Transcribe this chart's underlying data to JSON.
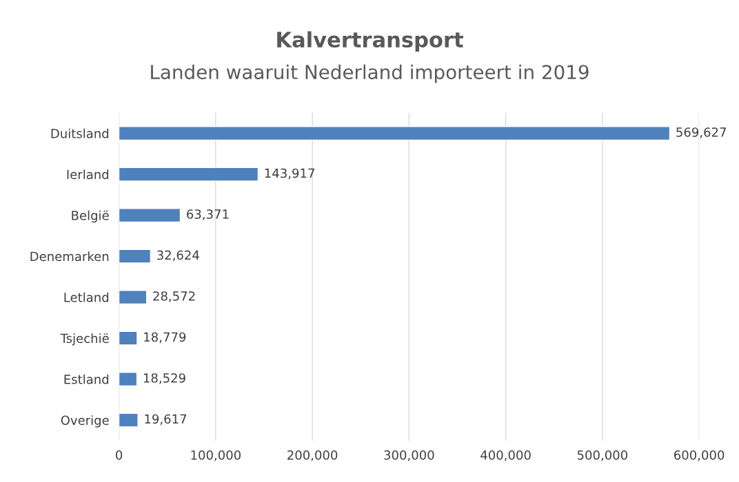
{
  "chart_data": {
    "type": "bar",
    "orientation": "horizontal",
    "title": "Kalvertransport",
    "subtitle": "Landen waaruit Nederland importeert in 2019",
    "categories": [
      "Duitsland",
      "Ierland",
      "België",
      "Denemarken",
      "Letland",
      "Tsjechië",
      "Estland",
      "Overige"
    ],
    "values": [
      569627,
      143917,
      63371,
      32624,
      28572,
      18779,
      18529,
      19617
    ],
    "color": "#4f81bd",
    "xlim": [
      0,
      600000
    ],
    "xticks": [
      0,
      {
        "value": 100000,
        "label": "100,000"
      },
      {
        "value": 200000,
        "label": "200,000"
      },
      {
        "value": 300000,
        "label": "300,000"
      },
      {
        "value": 400000,
        "label": "400,000"
      },
      {
        "value": 500000,
        "label": "500,000"
      },
      {
        "value": 600000,
        "label": "600,000"
      }
    ],
    "value_labels": [
      "569,627",
      "143,917",
      "63,371",
      "32,624",
      "28,572",
      "18,779",
      "18,529",
      "19,617"
    ],
    "grid": "x"
  }
}
